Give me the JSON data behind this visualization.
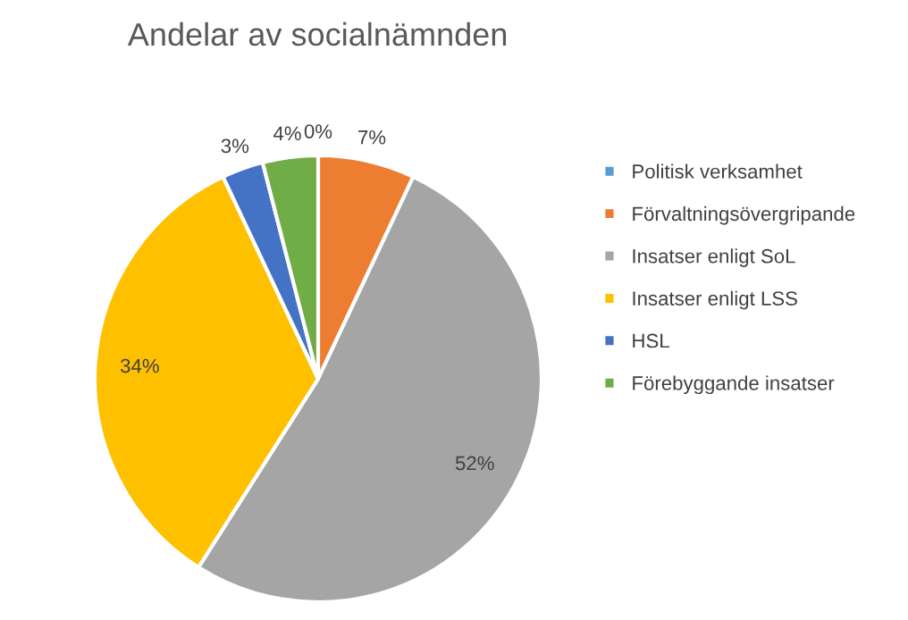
{
  "chart_data": {
    "type": "pie",
    "title": "Andelar av socialnämnden",
    "categories": [
      "Politisk verksamhet",
      "Förvaltningsövergripande",
      "Insatser enligt SoL",
      "Insatser enligt LSS",
      "HSL",
      "Förebyggande insatser"
    ],
    "values": [
      0,
      7,
      52,
      34,
      3,
      4
    ],
    "value_labels": [
      "0%",
      "7%",
      "52%",
      "34%",
      "3%",
      "4%"
    ],
    "colors": [
      "#5b9bd5",
      "#ed7d31",
      "#a5a5a5",
      "#ffc000",
      "#4472c4",
      "#70ad47"
    ],
    "legend": "right"
  }
}
